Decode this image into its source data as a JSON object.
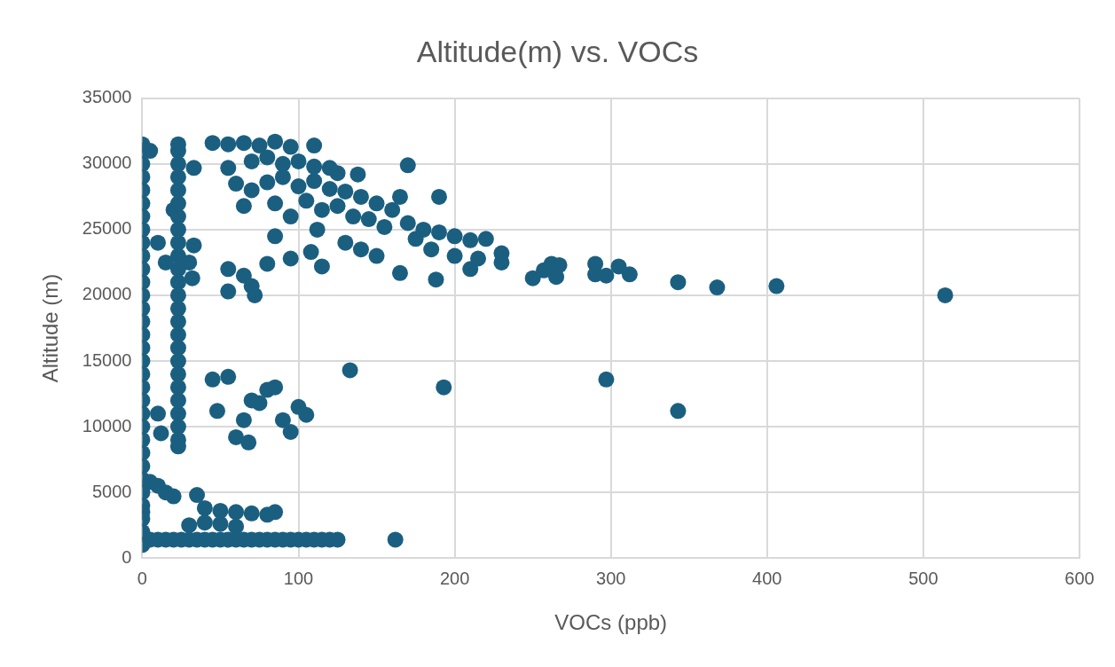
{
  "chart_data": {
    "type": "scatter",
    "title": "Altitude(m) vs. VOCs",
    "xlabel": "VOCs (ppb)",
    "ylabel": "Altitude (m)",
    "xlim": [
      0,
      600
    ],
    "xticks": [
      0,
      100,
      200,
      300,
      400,
      500,
      600
    ],
    "ylim": [
      0,
      35000
    ],
    "yticks": [
      0,
      5000,
      10000,
      15000,
      20000,
      25000,
      30000,
      35000
    ],
    "grid": true,
    "legend": false,
    "marker": "circle",
    "series": [
      {
        "color": "#1b5f80",
        "x": [
          0,
          0,
          0,
          0,
          0,
          0,
          0,
          0,
          0,
          0,
          0,
          0,
          0,
          0,
          0,
          0,
          0,
          0,
          23,
          23,
          23,
          23,
          23,
          23,
          23,
          23,
          23,
          23,
          23,
          23,
          5,
          15,
          25,
          35,
          45,
          55,
          65,
          75,
          85,
          95,
          105,
          115,
          0,
          0,
          0,
          0,
          0,
          0,
          0,
          0,
          0,
          0,
          0,
          0,
          0,
          0,
          0,
          23,
          23,
          23,
          23,
          23,
          23,
          23,
          23,
          23,
          23,
          23,
          23,
          23,
          10,
          20,
          30,
          40,
          50,
          60,
          70,
          80,
          90,
          100,
          110,
          120,
          125,
          162,
          5,
          10,
          15,
          20,
          35,
          40,
          50,
          60,
          70,
          80,
          85,
          30,
          40,
          50,
          60,
          10,
          12,
          45,
          55,
          48,
          60,
          65,
          70,
          75,
          68,
          80,
          85,
          90,
          95,
          100,
          105,
          133,
          193,
          297,
          343,
          45,
          55,
          65,
          75,
          85,
          95,
          110,
          33,
          55,
          70,
          80,
          90,
          100,
          110,
          120,
          125,
          138,
          170,
          60,
          70,
          80,
          90,
          100,
          110,
          120,
          130,
          140,
          150,
          65,
          85,
          95,
          105,
          115,
          125,
          135,
          145,
          160,
          165,
          190,
          170,
          180,
          155,
          175,
          190,
          200,
          210,
          220,
          230,
          185,
          200,
          215,
          230,
          210,
          150,
          140,
          130,
          112,
          115,
          108,
          85,
          80,
          95,
          55,
          55,
          65,
          70,
          72,
          250,
          257,
          262,
          267,
          265,
          290,
          290,
          297,
          305,
          312,
          343,
          368,
          406,
          514,
          165,
          188,
          33,
          30,
          32,
          15,
          10,
          20,
          5
        ],
        "values": [
          2000,
          4000,
          6000,
          8000,
          10000,
          12000,
          14000,
          16000,
          18000,
          20000,
          22000,
          24000,
          26000,
          28000,
          30000,
          31000,
          1000,
          3500,
          9000,
          11000,
          13000,
          15000,
          17000,
          19000,
          21000,
          23000,
          25000,
          27000,
          29000,
          31000,
          1400,
          1400,
          1400,
          1400,
          1400,
          1400,
          1400,
          1400,
          1400,
          1400,
          1400,
          1400,
          3000,
          5000,
          7000,
          9000,
          11000,
          13000,
          15000,
          17000,
          19000,
          21000,
          23000,
          25000,
          27000,
          29000,
          31500,
          8500,
          10000,
          12000,
          14000,
          16000,
          18000,
          20000,
          22000,
          24000,
          26000,
          28000,
          30000,
          31500,
          1400,
          1400,
          1400,
          1400,
          1400,
          1400,
          1400,
          1400,
          1400,
          1400,
          1400,
          1400,
          1400,
          1400,
          5800,
          5500,
          5000,
          4700,
          4800,
          3800,
          3600,
          3500,
          3400,
          3300,
          3500,
          2500,
          2700,
          2600,
          2400,
          11000,
          9500,
          13600,
          13800,
          11200,
          9200,
          10500,
          12000,
          11800,
          8800,
          12800,
          13000,
          10500,
          9600,
          11500,
          10900,
          14300,
          13000,
          13600,
          11200,
          31600,
          31500,
          31600,
          31400,
          31700,
          31300,
          31400,
          29700,
          29700,
          30200,
          30500,
          30000,
          30200,
          29800,
          29700,
          29300,
          29200,
          29900,
          28500,
          28000,
          28600,
          29000,
          28300,
          28700,
          28100,
          27900,
          27500,
          27000,
          26800,
          27000,
          26000,
          27200,
          26500,
          26800,
          26000,
          25800,
          26500,
          27500,
          27500,
          25500,
          25000,
          25200,
          24300,
          24800,
          24500,
          24200,
          24300,
          23200,
          23500,
          23000,
          22800,
          22500,
          22000,
          23000,
          23500,
          24000,
          25000,
          22200,
          23300,
          24500,
          22400,
          22800,
          22000,
          20300,
          21500,
          20700,
          20000,
          21300,
          21900,
          22400,
          22300,
          21400,
          22400,
          21600,
          21500,
          22200,
          21600,
          21000,
          20600,
          20700,
          20000,
          21700,
          21200,
          23800,
          22500,
          21300,
          22500,
          24000,
          26500,
          31000
        ]
      }
    ]
  }
}
